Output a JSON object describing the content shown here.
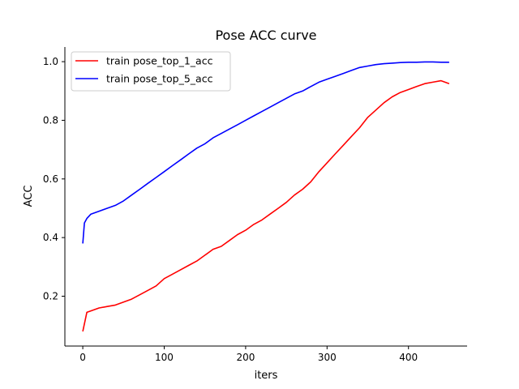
{
  "chart_data": {
    "type": "line",
    "title": "Pose ACC curve",
    "xlabel": "iters",
    "ylabel": "ACC",
    "xlim": [
      -22,
      472
    ],
    "ylim": [
      0.03,
      1.05
    ],
    "xticks": [
      0,
      100,
      200,
      300,
      400
    ],
    "yticks": [
      0.2,
      0.4,
      0.6,
      0.8,
      1.0
    ],
    "xtick_labels": [
      "0",
      "100",
      "200",
      "300",
      "400"
    ],
    "ytick_labels": [
      "0.2",
      "0.4",
      "0.6",
      "0.8",
      "1.0"
    ],
    "legend_position": "top-left",
    "grid": false,
    "series": [
      {
        "name": "train pose_top_1_acc",
        "color": "#ff0000",
        "x": [
          0,
          5,
          10,
          20,
          30,
          40,
          50,
          60,
          70,
          80,
          90,
          100,
          110,
          120,
          130,
          140,
          150,
          160,
          170,
          180,
          190,
          200,
          210,
          220,
          230,
          240,
          250,
          260,
          270,
          280,
          290,
          300,
          310,
          320,
          330,
          340,
          350,
          360,
          370,
          380,
          390,
          400,
          410,
          420,
          430,
          440,
          450
        ],
        "y": [
          0.08,
          0.145,
          0.15,
          0.16,
          0.165,
          0.17,
          0.18,
          0.19,
          0.205,
          0.22,
          0.235,
          0.26,
          0.275,
          0.29,
          0.305,
          0.32,
          0.34,
          0.36,
          0.37,
          0.39,
          0.41,
          0.425,
          0.445,
          0.46,
          0.48,
          0.5,
          0.52,
          0.545,
          0.565,
          0.59,
          0.625,
          0.655,
          0.685,
          0.715,
          0.745,
          0.775,
          0.81,
          0.835,
          0.86,
          0.88,
          0.895,
          0.905,
          0.915,
          0.925,
          0.93,
          0.935,
          0.925
        ]
      },
      {
        "name": "train pose_top_5_acc",
        "color": "#0000ff",
        "x": [
          0,
          2,
          5,
          10,
          20,
          30,
          40,
          50,
          60,
          70,
          80,
          90,
          100,
          110,
          120,
          130,
          140,
          150,
          160,
          170,
          180,
          190,
          200,
          210,
          220,
          230,
          240,
          250,
          260,
          270,
          280,
          290,
          300,
          310,
          320,
          330,
          340,
          350,
          360,
          370,
          380,
          390,
          400,
          410,
          420,
          430,
          440,
          450
        ],
        "y": [
          0.38,
          0.45,
          0.465,
          0.48,
          0.49,
          0.5,
          0.51,
          0.525,
          0.545,
          0.565,
          0.585,
          0.605,
          0.625,
          0.645,
          0.665,
          0.685,
          0.705,
          0.72,
          0.74,
          0.755,
          0.77,
          0.785,
          0.8,
          0.815,
          0.83,
          0.845,
          0.86,
          0.875,
          0.89,
          0.9,
          0.915,
          0.93,
          0.94,
          0.95,
          0.96,
          0.97,
          0.98,
          0.985,
          0.99,
          0.993,
          0.995,
          0.997,
          0.998,
          0.998,
          0.999,
          0.999,
          0.998,
          0.998
        ]
      }
    ]
  }
}
